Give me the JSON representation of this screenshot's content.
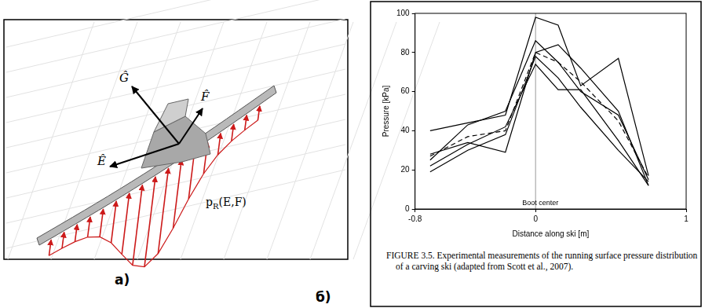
{
  "panel_labels": [
    "а)",
    "б)"
  ],
  "diagram": {
    "vectors": [
      "Ĝ",
      "F̂",
      "Ê"
    ],
    "pressure_label": {
      "base": "p",
      "subscript": "R",
      "rest": "(E,F)"
    }
  },
  "chart_data": {
    "type": "line",
    "x_label": "Distance along ski [m]",
    "y_label": "Pressure [kPa]",
    "x": [
      -0.7,
      -0.45,
      -0.2,
      0,
      0.15,
      0.3,
      0.55,
      0.75
    ],
    "series": [
      {
        "color": "#000000",
        "line_style": "solid",
        "values": [
          40,
          44,
          48,
          98,
          94,
          63,
          77,
          17
        ]
      },
      {
        "color": "#000000",
        "line_style": "solid",
        "values": [
          25,
          43,
          50,
          86,
          75,
          60,
          48,
          15
        ]
      },
      {
        "color": "#000000",
        "line_style": "solid",
        "values": [
          28,
          34,
          29,
          80,
          84,
          72,
          50,
          12
        ]
      },
      {
        "color": "#000000",
        "line_style": "solid",
        "values": [
          22,
          33,
          42,
          74,
          61,
          61,
          35,
          12
        ]
      },
      {
        "color": "#000000",
        "line_style": "solid",
        "values": [
          19,
          30,
          38,
          78,
          67,
          52,
          30,
          14
        ]
      },
      {
        "color": "#000000",
        "line_style": "dashed",
        "values": [
          27,
          37,
          40,
          80,
          75,
          65,
          45,
          16
        ]
      }
    ],
    "xlim": [
      -0.8,
      1
    ],
    "xticks": [
      -0.8,
      0,
      1
    ],
    "ylim": [
      0,
      100
    ],
    "yticks": [
      0,
      20,
      40,
      60,
      80,
      100
    ],
    "grid": false,
    "marker": "none",
    "annotations": [
      {
        "x": 0,
        "label": "Boot center"
      }
    ]
  },
  "caption": "FIGURE 3.5.  Experimental measurements of the running surface pressure distribution of a carving ski (adapted from Scott et al., 2007)."
}
